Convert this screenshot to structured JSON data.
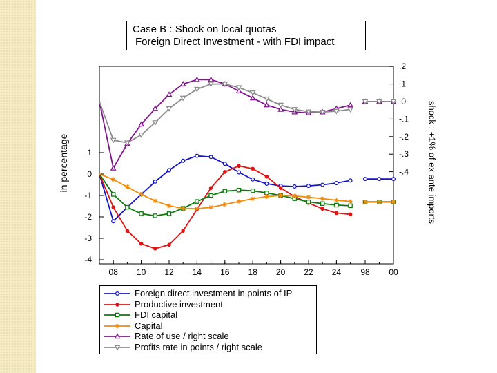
{
  "chart_data": {
    "type": "line",
    "title_line1": "Case B : Shock on local quotas",
    "title_line2": "Foreign Direct Investment - with FDI impact",
    "ylabel": "in percentage",
    "y2label": "shock : +1% of ex ante imports",
    "x_ticks": [
      "08",
      "10",
      "12",
      "14",
      "16",
      "18",
      "20",
      "22",
      "24",
      "98",
      "00"
    ],
    "y_ticks": [
      "1",
      "0",
      "-1",
      "-2",
      "-3",
      "-4"
    ],
    "y2_ticks": [
      ".2",
      ".1",
      ".0",
      "-.1",
      "-.2",
      "-.3",
      "-.4"
    ],
    "ylim": [
      -4,
      1.9
    ],
    "y2lim": [
      -0.4,
      0.2
    ],
    "x_main": [
      2007,
      2008,
      2009,
      2010,
      2011,
      2012,
      2013,
      2014,
      2015,
      2016,
      2017,
      2018,
      2019,
      2020,
      2021,
      2022,
      2023,
      2024,
      2025
    ],
    "x_tail": [
      2098,
      2099,
      2100
    ],
    "series": [
      {
        "name": "Foreign direct investment in points of IP",
        "axis": "left",
        "color": "#1414c8",
        "marker": "circle",
        "values": [
          0,
          -2.2,
          -1.55,
          -0.95,
          -0.35,
          0.18,
          0.62,
          0.85,
          0.8,
          0.48,
          0.08,
          -0.25,
          -0.45,
          -0.55,
          -0.58,
          -0.55,
          -0.5,
          -0.42,
          -0.3
        ],
        "tail": [
          -0.23,
          -0.23,
          -0.23
        ]
      },
      {
        "name": "Productive investment",
        "axis": "left",
        "color": "#e01414",
        "marker": "dot",
        "values": [
          0,
          -1.55,
          -2.65,
          -3.25,
          -3.48,
          -3.3,
          -2.65,
          -1.65,
          -0.65,
          0.1,
          0.38,
          0.25,
          -0.12,
          -0.65,
          -1.05,
          -1.35,
          -1.62,
          -1.82,
          -1.88
        ],
        "tail": [
          -1.3,
          -1.3,
          -1.3
        ]
      },
      {
        "name": "FDI capital",
        "axis": "left",
        "color": "#0a7a0a",
        "marker": "square",
        "values": [
          0,
          -0.95,
          -1.55,
          -1.85,
          -1.95,
          -1.85,
          -1.6,
          -1.28,
          -1.0,
          -0.8,
          -0.75,
          -0.78,
          -0.88,
          -1.0,
          -1.15,
          -1.3,
          -1.38,
          -1.45,
          -1.48
        ],
        "tail": [
          -1.3,
          -1.3,
          -1.3
        ]
      },
      {
        "name": "Capital",
        "axis": "left",
        "color": "#f08c0a",
        "marker": "star",
        "values": [
          0,
          -0.25,
          -0.6,
          -0.95,
          -1.25,
          -1.48,
          -1.6,
          -1.62,
          -1.55,
          -1.42,
          -1.28,
          -1.15,
          -1.05,
          -1.0,
          -1.02,
          -1.08,
          -1.15,
          -1.22,
          -1.28
        ],
        "tail": [
          -1.3,
          -1.3,
          -1.3
        ]
      },
      {
        "name": "Rate of use / right scale",
        "axis": "right",
        "color": "#80148c",
        "marker": "triangle-up",
        "values": [
          0,
          -0.38,
          -0.24,
          -0.13,
          -0.04,
          0.04,
          0.1,
          0.125,
          0.125,
          0.1,
          0.06,
          0.02,
          -0.02,
          -0.045,
          -0.06,
          -0.065,
          -0.06,
          -0.04,
          -0.02
        ],
        "tail": [
          0,
          0,
          0
        ]
      },
      {
        "name": "Profits rate in points / right scale",
        "axis": "right",
        "color": "#8c8c8c",
        "marker": "triangle-down",
        "values": [
          0,
          -0.22,
          -0.235,
          -0.19,
          -0.12,
          -0.04,
          0.02,
          0.07,
          0.1,
          0.1,
          0.08,
          0.05,
          0.015,
          -0.02,
          -0.045,
          -0.058,
          -0.06,
          -0.055,
          -0.045
        ],
        "tail": [
          0,
          0,
          0
        ]
      }
    ],
    "grid": false,
    "legend_position": "below"
  }
}
